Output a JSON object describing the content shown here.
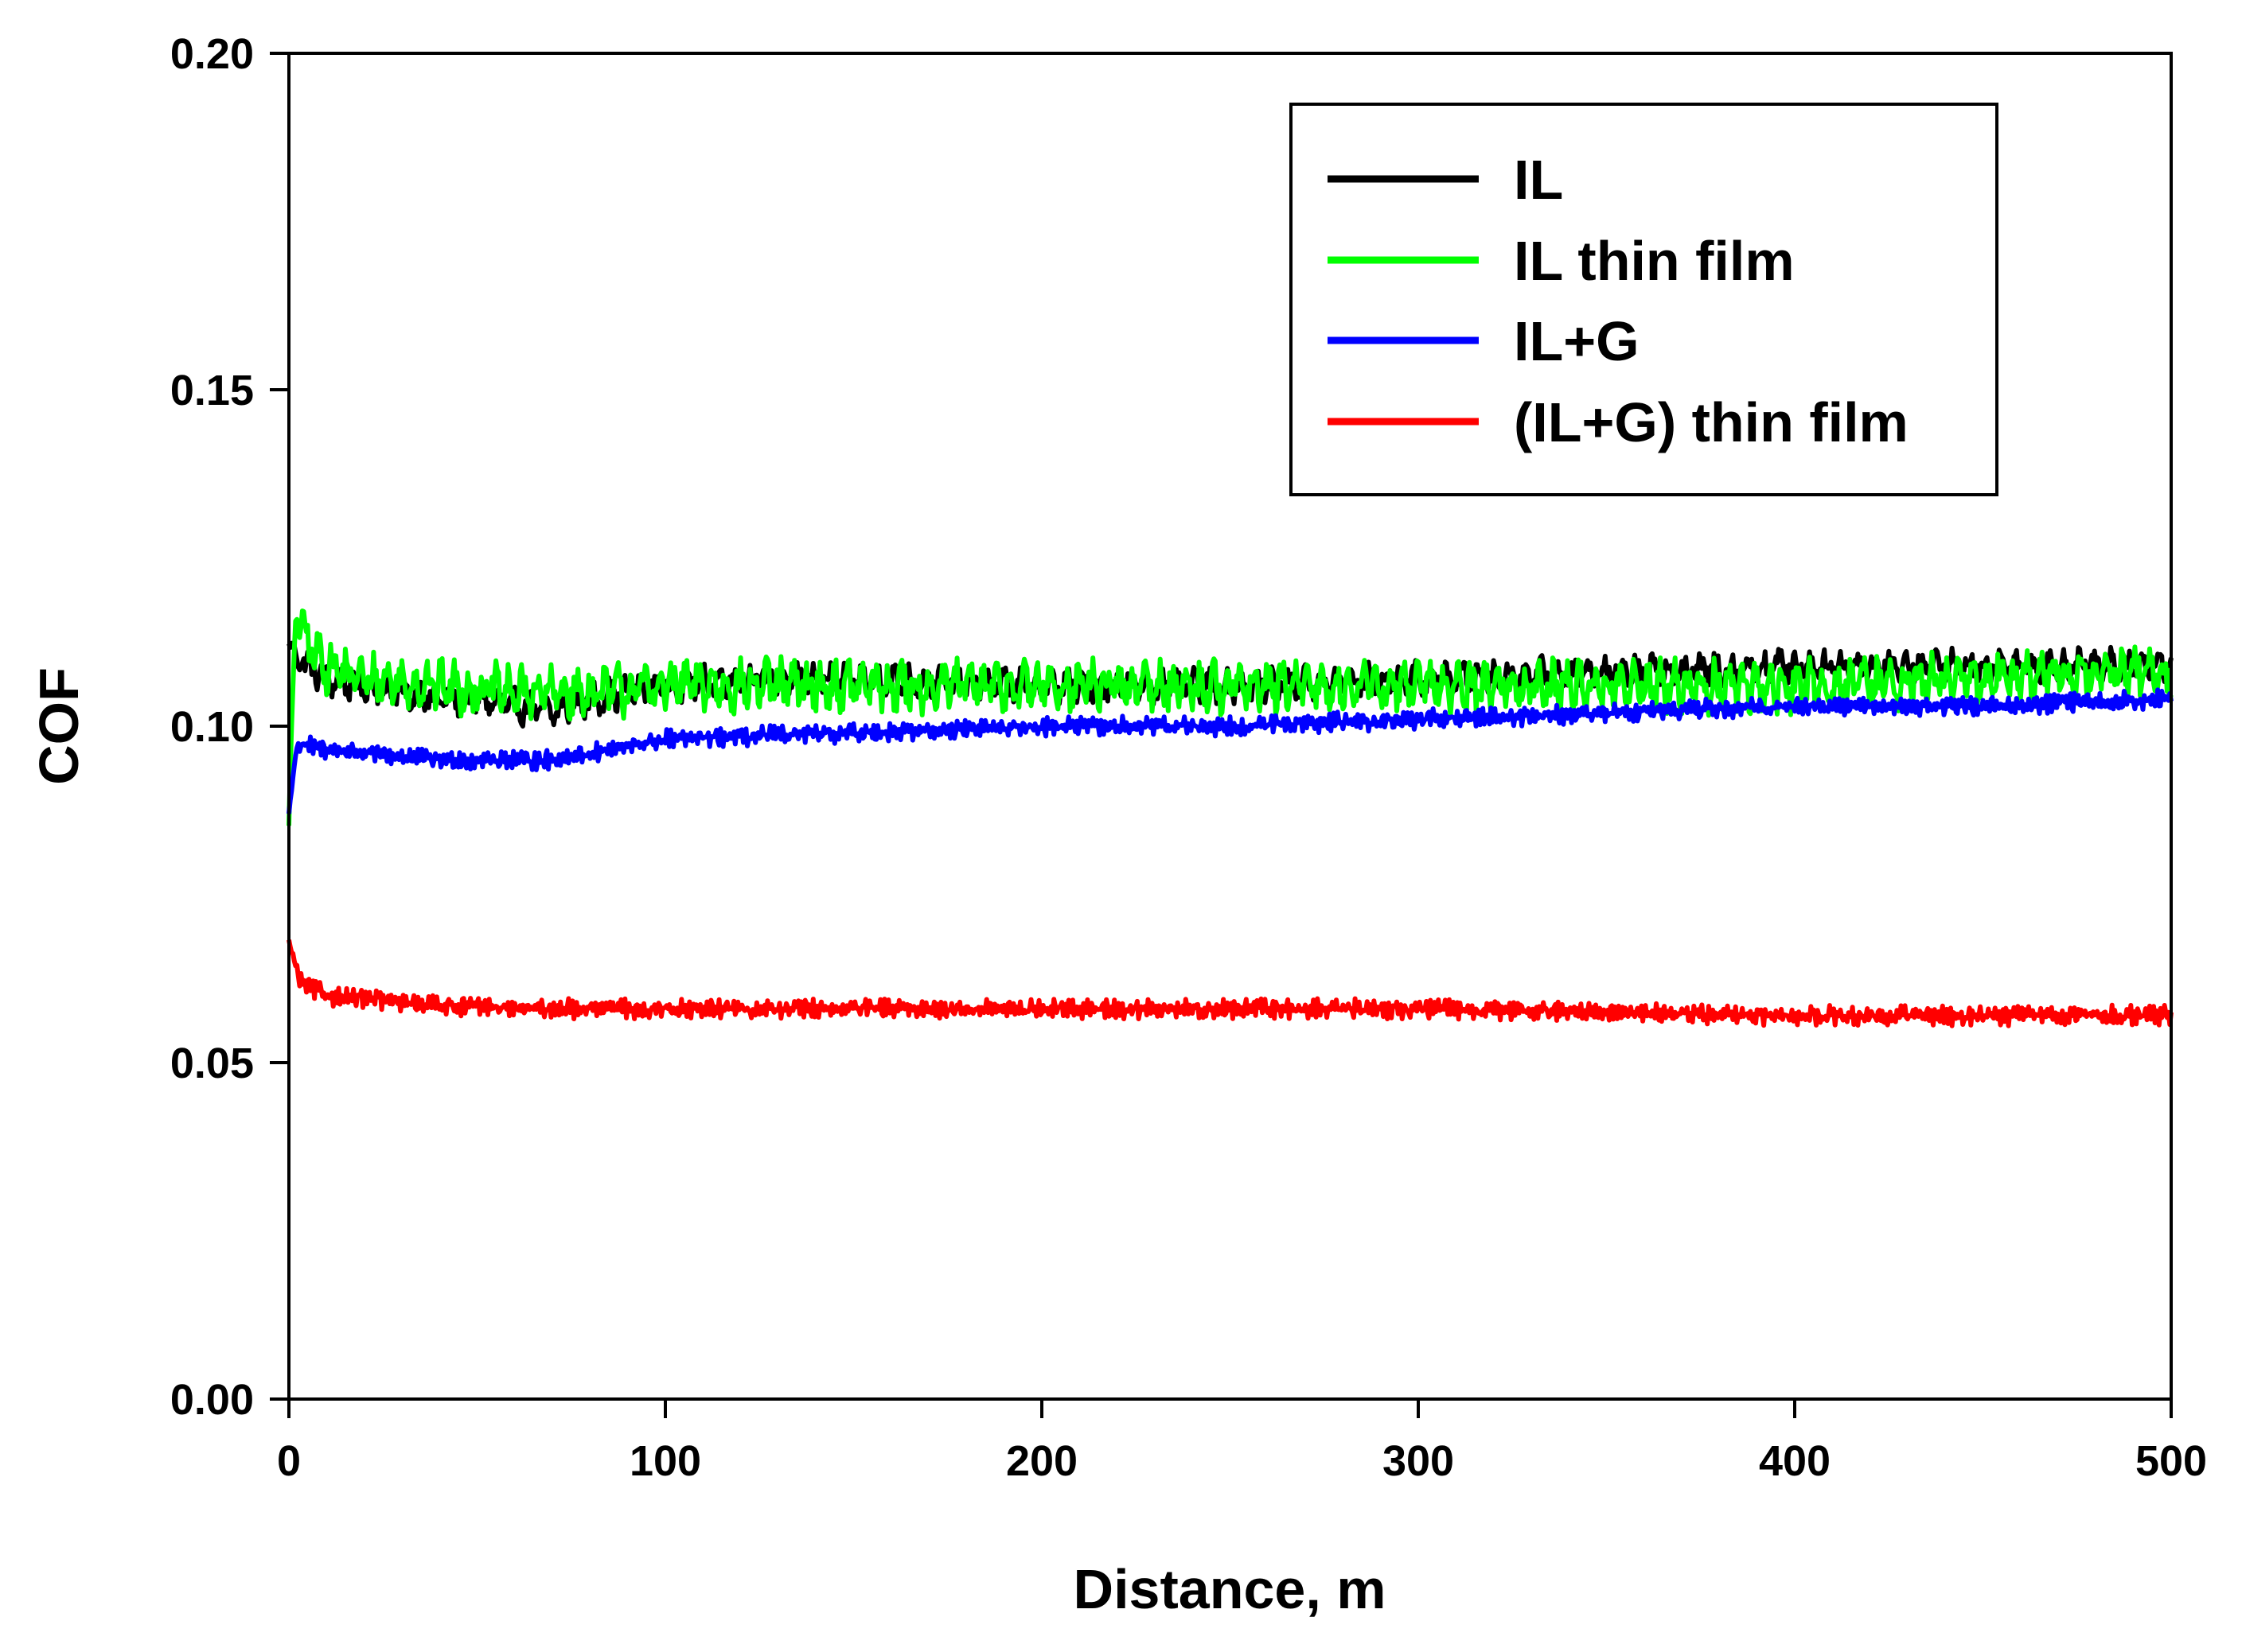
{
  "chart_data": {
    "type": "line",
    "title": "",
    "xlabel": "Distance, m",
    "ylabel": "COF",
    "xlim": [
      0,
      500
    ],
    "ylim": [
      0.0,
      0.2
    ],
    "xticks": [
      0,
      100,
      200,
      300,
      400,
      500
    ],
    "yticks": [
      0.0,
      0.05,
      0.1,
      0.15,
      0.2
    ],
    "xtick_labels": [
      "0",
      "100",
      "200",
      "300",
      "400",
      "500"
    ],
    "ytick_labels": [
      "0.00",
      "0.05",
      "0.10",
      "0.15",
      "0.20"
    ],
    "grid": false,
    "legend_position": "top-right",
    "series": [
      {
        "name": "IL",
        "color": "#000000",
        "x": [
          0,
          5,
          10,
          20,
          30,
          40,
          50,
          60,
          70,
          80,
          100,
          120,
          150,
          200,
          250,
          300,
          350,
          400,
          450,
          500
        ],
        "y": [
          0.112,
          0.109,
          0.107,
          0.106,
          0.105,
          0.104,
          0.104,
          0.103,
          0.102,
          0.104,
          0.106,
          0.107,
          0.107,
          0.106,
          0.106,
          0.107,
          0.108,
          0.109,
          0.109,
          0.109
        ],
        "noise_amp": 0.0022,
        "noise_period_m": 4.2
      },
      {
        "name": "IL thin film",
        "color": "#00ff00",
        "x": [
          0,
          1,
          2,
          5,
          10,
          20,
          40,
          60,
          80,
          100,
          150,
          200,
          250,
          300,
          350,
          400,
          450,
          480,
          500
        ],
        "y": [
          0.086,
          0.104,
          0.118,
          0.112,
          0.109,
          0.107,
          0.106,
          0.105,
          0.105,
          0.106,
          0.106,
          0.106,
          0.106,
          0.106,
          0.106,
          0.106,
          0.107,
          0.108,
          0.108
        ],
        "noise_amp": 0.0035,
        "noise_period_m": 3.6
      },
      {
        "name": "IL+G",
        "color": "#0000ff",
        "x": [
          0,
          2,
          5,
          20,
          40,
          60,
          70,
          100,
          150,
          200,
          250,
          300,
          350,
          400,
          450,
          500
        ],
        "y": [
          0.087,
          0.097,
          0.097,
          0.096,
          0.095,
          0.095,
          0.095,
          0.098,
          0.099,
          0.1,
          0.1,
          0.101,
          0.102,
          0.103,
          0.103,
          0.104
        ],
        "noise_amp": 0.0012,
        "noise_period_m": 1.1
      },
      {
        "name": "(IL+G) thin film",
        "color": "#ff0000",
        "x": [
          0,
          1,
          3,
          10,
          30,
          60,
          100,
          150,
          200,
          300,
          400,
          500
        ],
        "y": [
          0.068,
          0.066,
          0.062,
          0.06,
          0.059,
          0.058,
          0.058,
          0.058,
          0.058,
          0.058,
          0.057,
          0.057
        ],
        "noise_amp": 0.0012,
        "noise_period_m": 1.0
      }
    ]
  }
}
